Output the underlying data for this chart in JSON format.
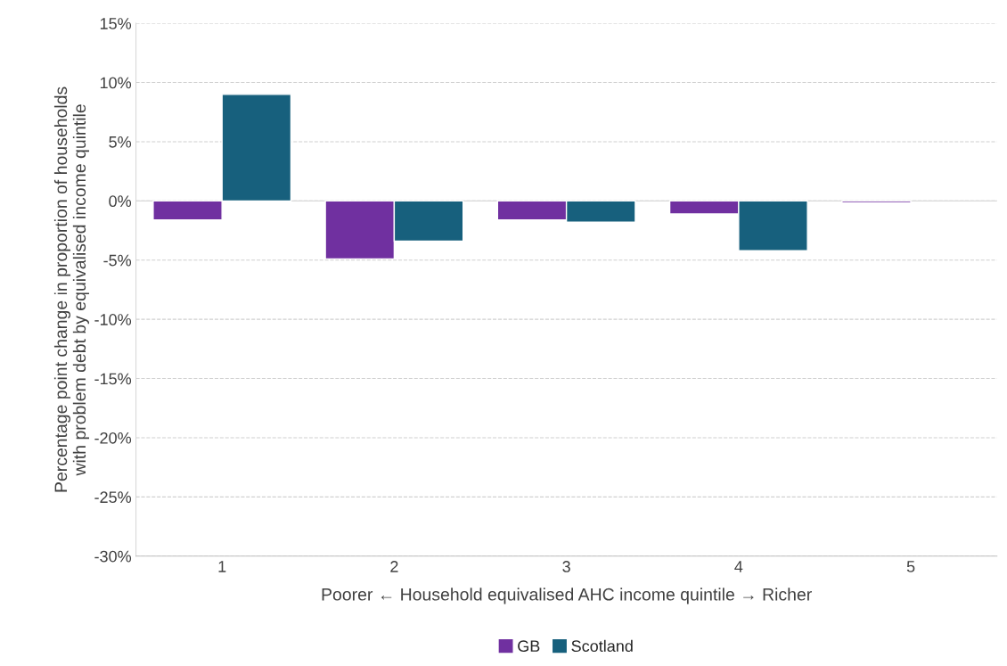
{
  "chart_data": {
    "type": "bar",
    "xlabel": "Poorer ← Household equivalised AHC income quintile → Richer",
    "ylabel": "Percentage point change in proportion of households\nwith problem debt by equivalised income quintile",
    "categories": [
      "1",
      "2",
      "3",
      "4",
      "5"
    ],
    "series": [
      {
        "name": "GB",
        "color": "#7030a0",
        "values": [
          -1.6,
          -4.9,
          -1.6,
          -1.1,
          -0.15
        ]
      },
      {
        "name": "Scotland",
        "color": "#17607d",
        "values": [
          9.0,
          -3.4,
          -1.8,
          -4.2,
          null
        ]
      }
    ],
    "ylim": [
      -30,
      15
    ],
    "yticks": [
      {
        "value": -30,
        "label": "-30%"
      },
      {
        "value": -25,
        "label": "-25%"
      },
      {
        "value": -20,
        "label": "-20%"
      },
      {
        "value": -15,
        "label": "-15%"
      },
      {
        "value": -10,
        "label": "-10%"
      },
      {
        "value": -5,
        "label": "-5%"
      },
      {
        "value": 0,
        "label": "0%"
      },
      {
        "value": 5,
        "label": "5%"
      },
      {
        "value": 10,
        "label": "10%"
      },
      {
        "value": 15,
        "label": "15%"
      }
    ],
    "grid": "y",
    "legend": "bottom"
  }
}
